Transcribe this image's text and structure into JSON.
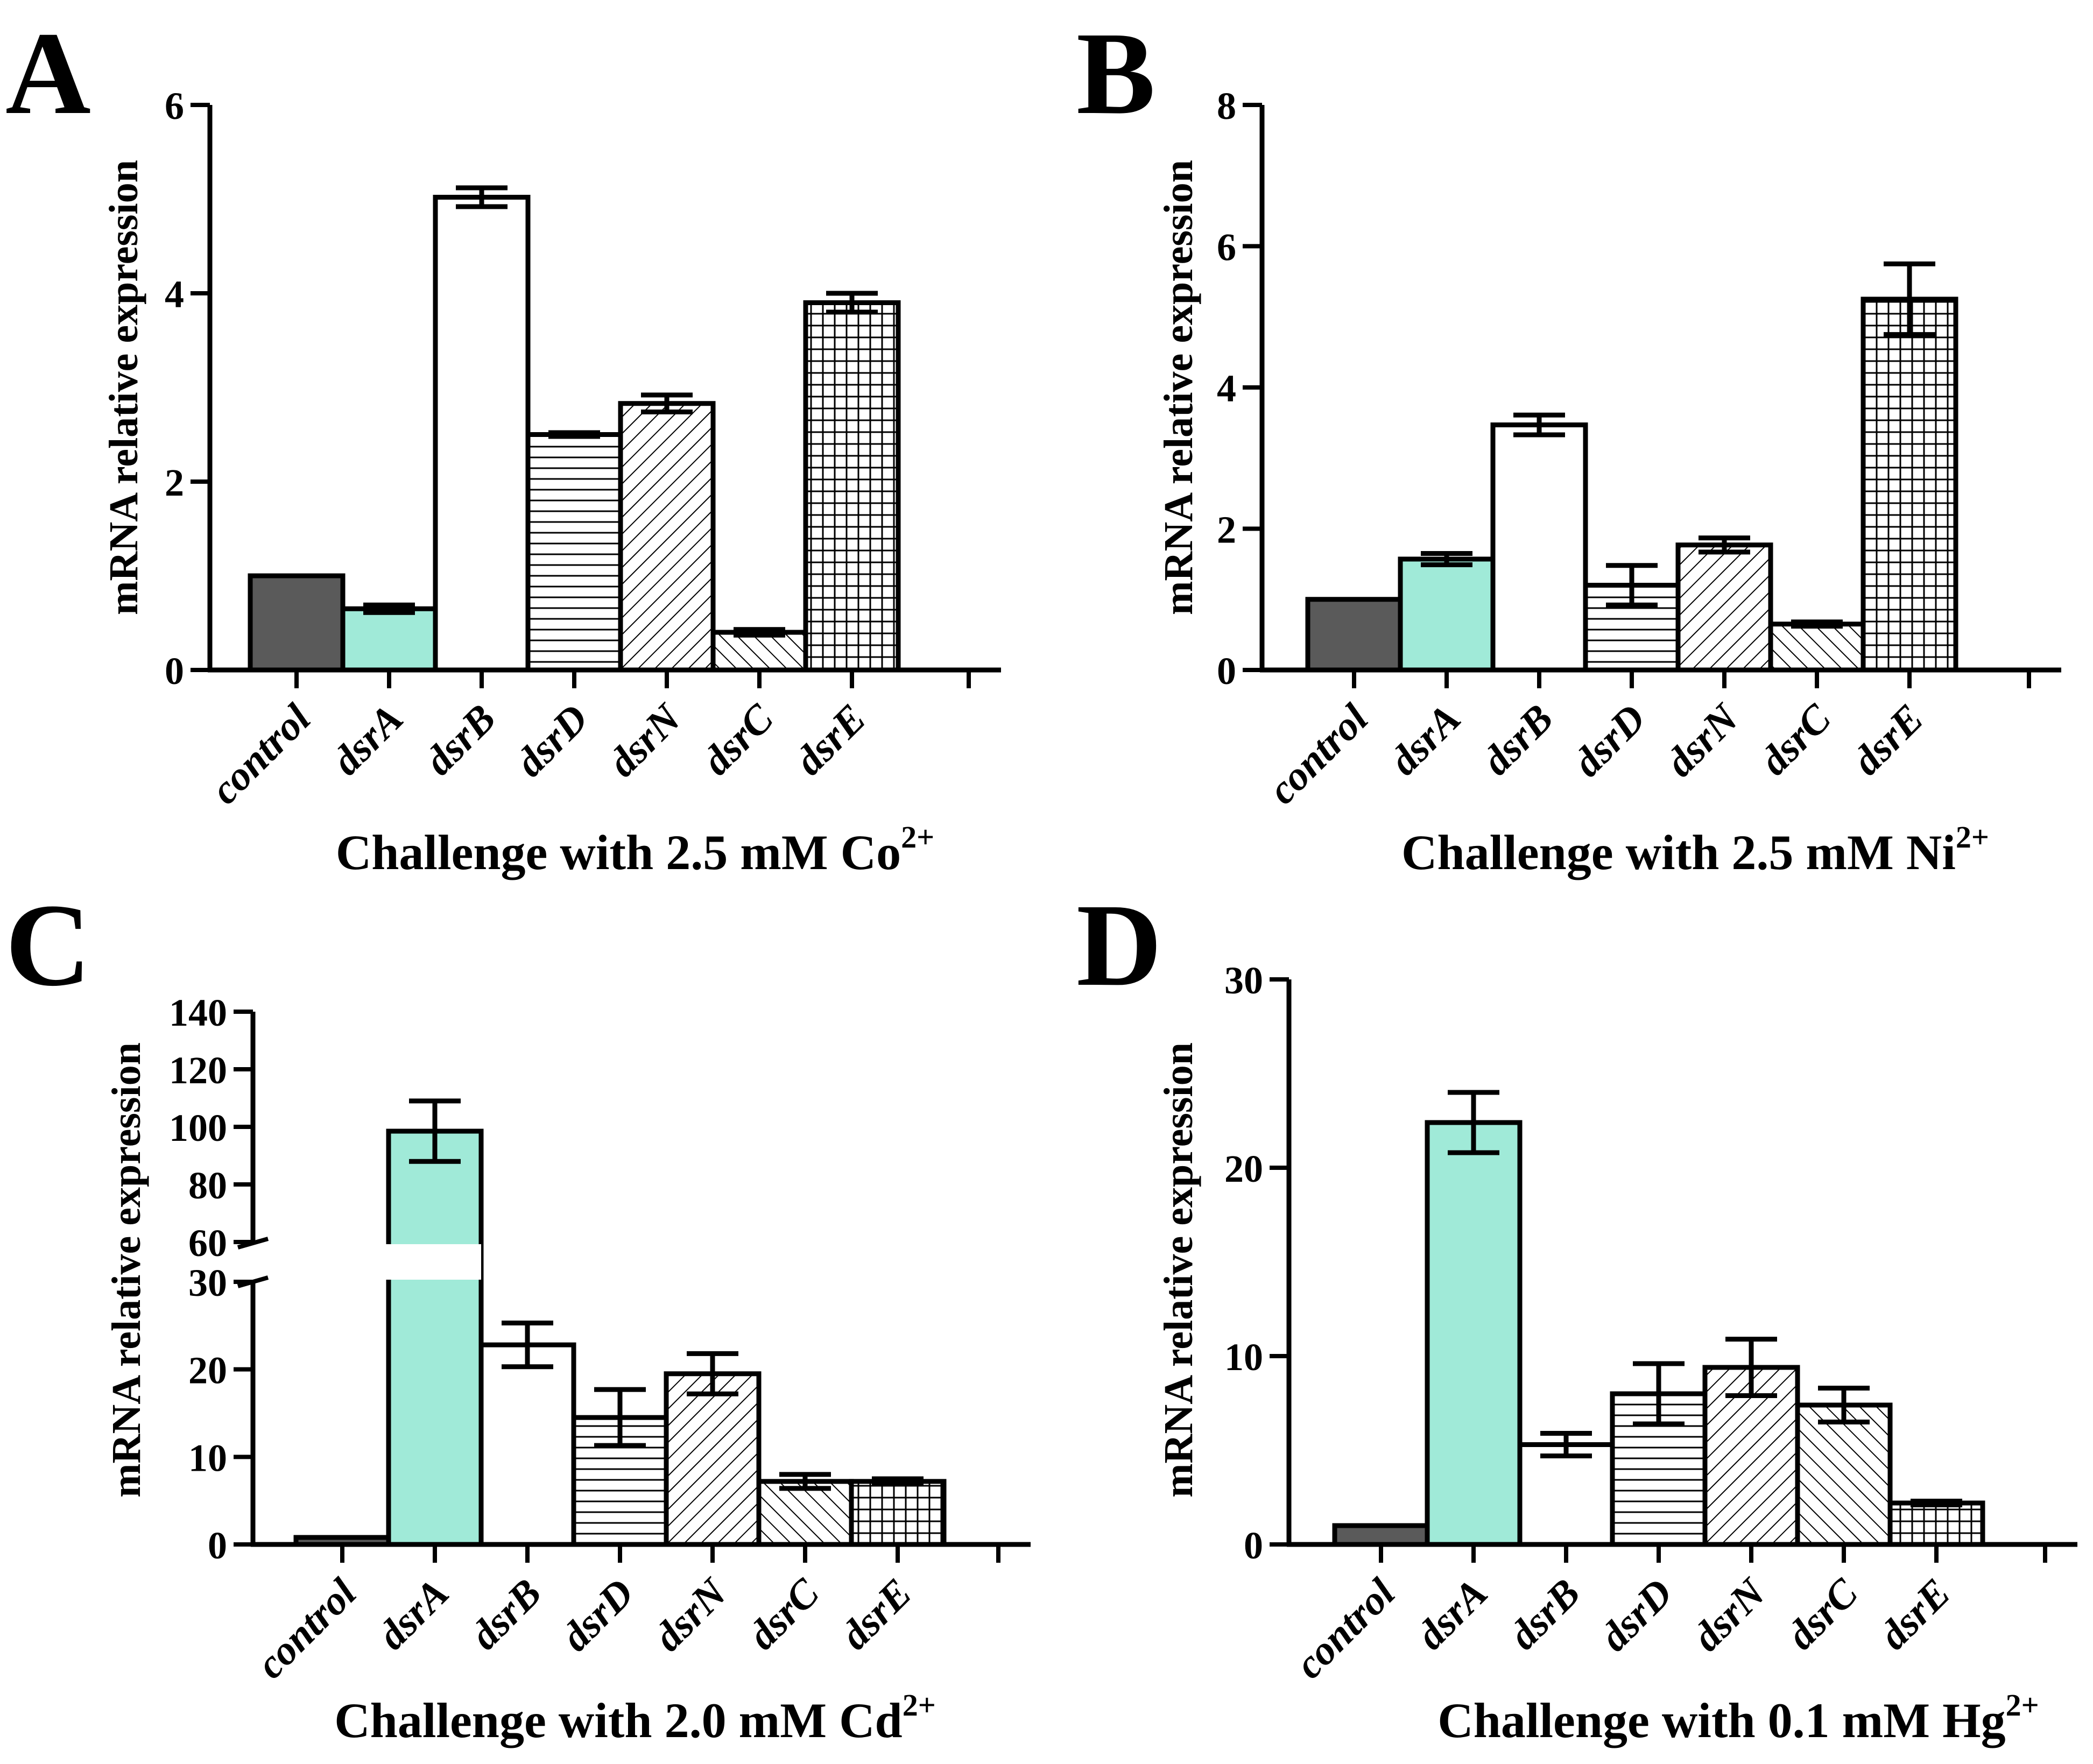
{
  "figure": {
    "fill_colors": {
      "control": "#5a5a5a",
      "dsrA": "#a0ead8",
      "white": "#ffffff",
      "stroke": "#000000"
    }
  },
  "chart_data": [
    {
      "panel_label": "A",
      "type": "bar",
      "ylabel": "mRNA relative expression",
      "xlabel_text": "Challenge with 2.5 mM Co",
      "xlabel_superscript": "2+",
      "categories": [
        "control",
        "dsrA",
        "dsrB",
        "dsrD",
        "dsrN",
        "dsrC",
        "dsrE"
      ],
      "patterns": [
        "solid-dark",
        "solid-teal",
        "none",
        "hlines",
        "diag-up",
        "diag-down",
        "grid"
      ],
      "values": [
        1.0,
        0.65,
        5.02,
        2.5,
        2.83,
        0.4,
        3.9
      ],
      "errors": [
        0.0,
        0.04,
        0.1,
        0.02,
        0.09,
        0.03,
        0.1
      ],
      "ylim": [
        0,
        6
      ],
      "yticks": [
        "0",
        "2",
        "4",
        "6"
      ],
      "ytick_values": [
        0,
        2,
        4,
        6
      ]
    },
    {
      "panel_label": "B",
      "type": "bar",
      "ylabel": "mRNA relative expression",
      "xlabel_text": "Challenge with 2.5 mM Ni",
      "xlabel_superscript": "2+",
      "categories": [
        "control",
        "dsrA",
        "dsrB",
        "dsrD",
        "dsrN",
        "dsrC",
        "dsrE"
      ],
      "patterns": [
        "solid-dark",
        "solid-teal",
        "none",
        "hlines",
        "diag-up",
        "diag-down",
        "grid"
      ],
      "values": [
        1.0,
        1.57,
        3.47,
        1.2,
        1.77,
        0.65,
        5.25
      ],
      "errors": [
        0.0,
        0.08,
        0.14,
        0.28,
        0.1,
        0.03,
        0.5
      ],
      "ylim": [
        0,
        8
      ],
      "yticks": [
        "0",
        "2",
        "4",
        "6",
        "8"
      ],
      "ytick_values": [
        0,
        2,
        4,
        6,
        8
      ]
    },
    {
      "panel_label": "C",
      "type": "bar",
      "ylabel": "mRNA relative expression",
      "xlabel_text": "Challenge with 2.0 mM Cd",
      "xlabel_superscript": "2+",
      "categories": [
        "control",
        "dsrA",
        "dsrB",
        "dsrD",
        "dsrN",
        "dsrC",
        "dsrE"
      ],
      "patterns": [
        "solid-dark",
        "solid-teal",
        "none",
        "hlines",
        "diag-up",
        "diag-down",
        "grid"
      ],
      "values": [
        0.8,
        98.5,
        22.8,
        14.5,
        19.5,
        7.2,
        7.2
      ],
      "errors": [
        0.0,
        10.5,
        2.5,
        3.2,
        2.3,
        0.8,
        0.3
      ],
      "ylim": [
        0,
        140
      ],
      "axis_break": [
        30,
        60
      ],
      "yticks": [
        "0",
        "10",
        "20",
        "30",
        "60",
        "80",
        "100",
        "120",
        "140"
      ],
      "ytick_values": [
        0,
        10,
        20,
        30,
        60,
        80,
        100,
        120,
        140
      ]
    },
    {
      "panel_label": "D",
      "type": "bar",
      "ylabel": "mRNA relative expression",
      "xlabel_text": "Challenge with 0.1 mM Hg",
      "xlabel_superscript": "2+",
      "categories": [
        "control",
        "dsrA",
        "dsrB",
        "dsrD",
        "dsrN",
        "dsrC",
        "dsrE"
      ],
      "patterns": [
        "solid-dark",
        "solid-teal",
        "none",
        "hlines",
        "diag-up",
        "diag-down",
        "grid"
      ],
      "values": [
        1.0,
        22.4,
        5.3,
        8.0,
        9.4,
        7.4,
        2.2
      ],
      "errors": [
        0.0,
        1.6,
        0.6,
        1.6,
        1.5,
        0.9,
        0.1
      ],
      "ylim": [
        0,
        30
      ],
      "yticks": [
        "0",
        "10",
        "20",
        "30"
      ],
      "ytick_values": [
        0,
        10,
        20,
        30
      ]
    }
  ]
}
